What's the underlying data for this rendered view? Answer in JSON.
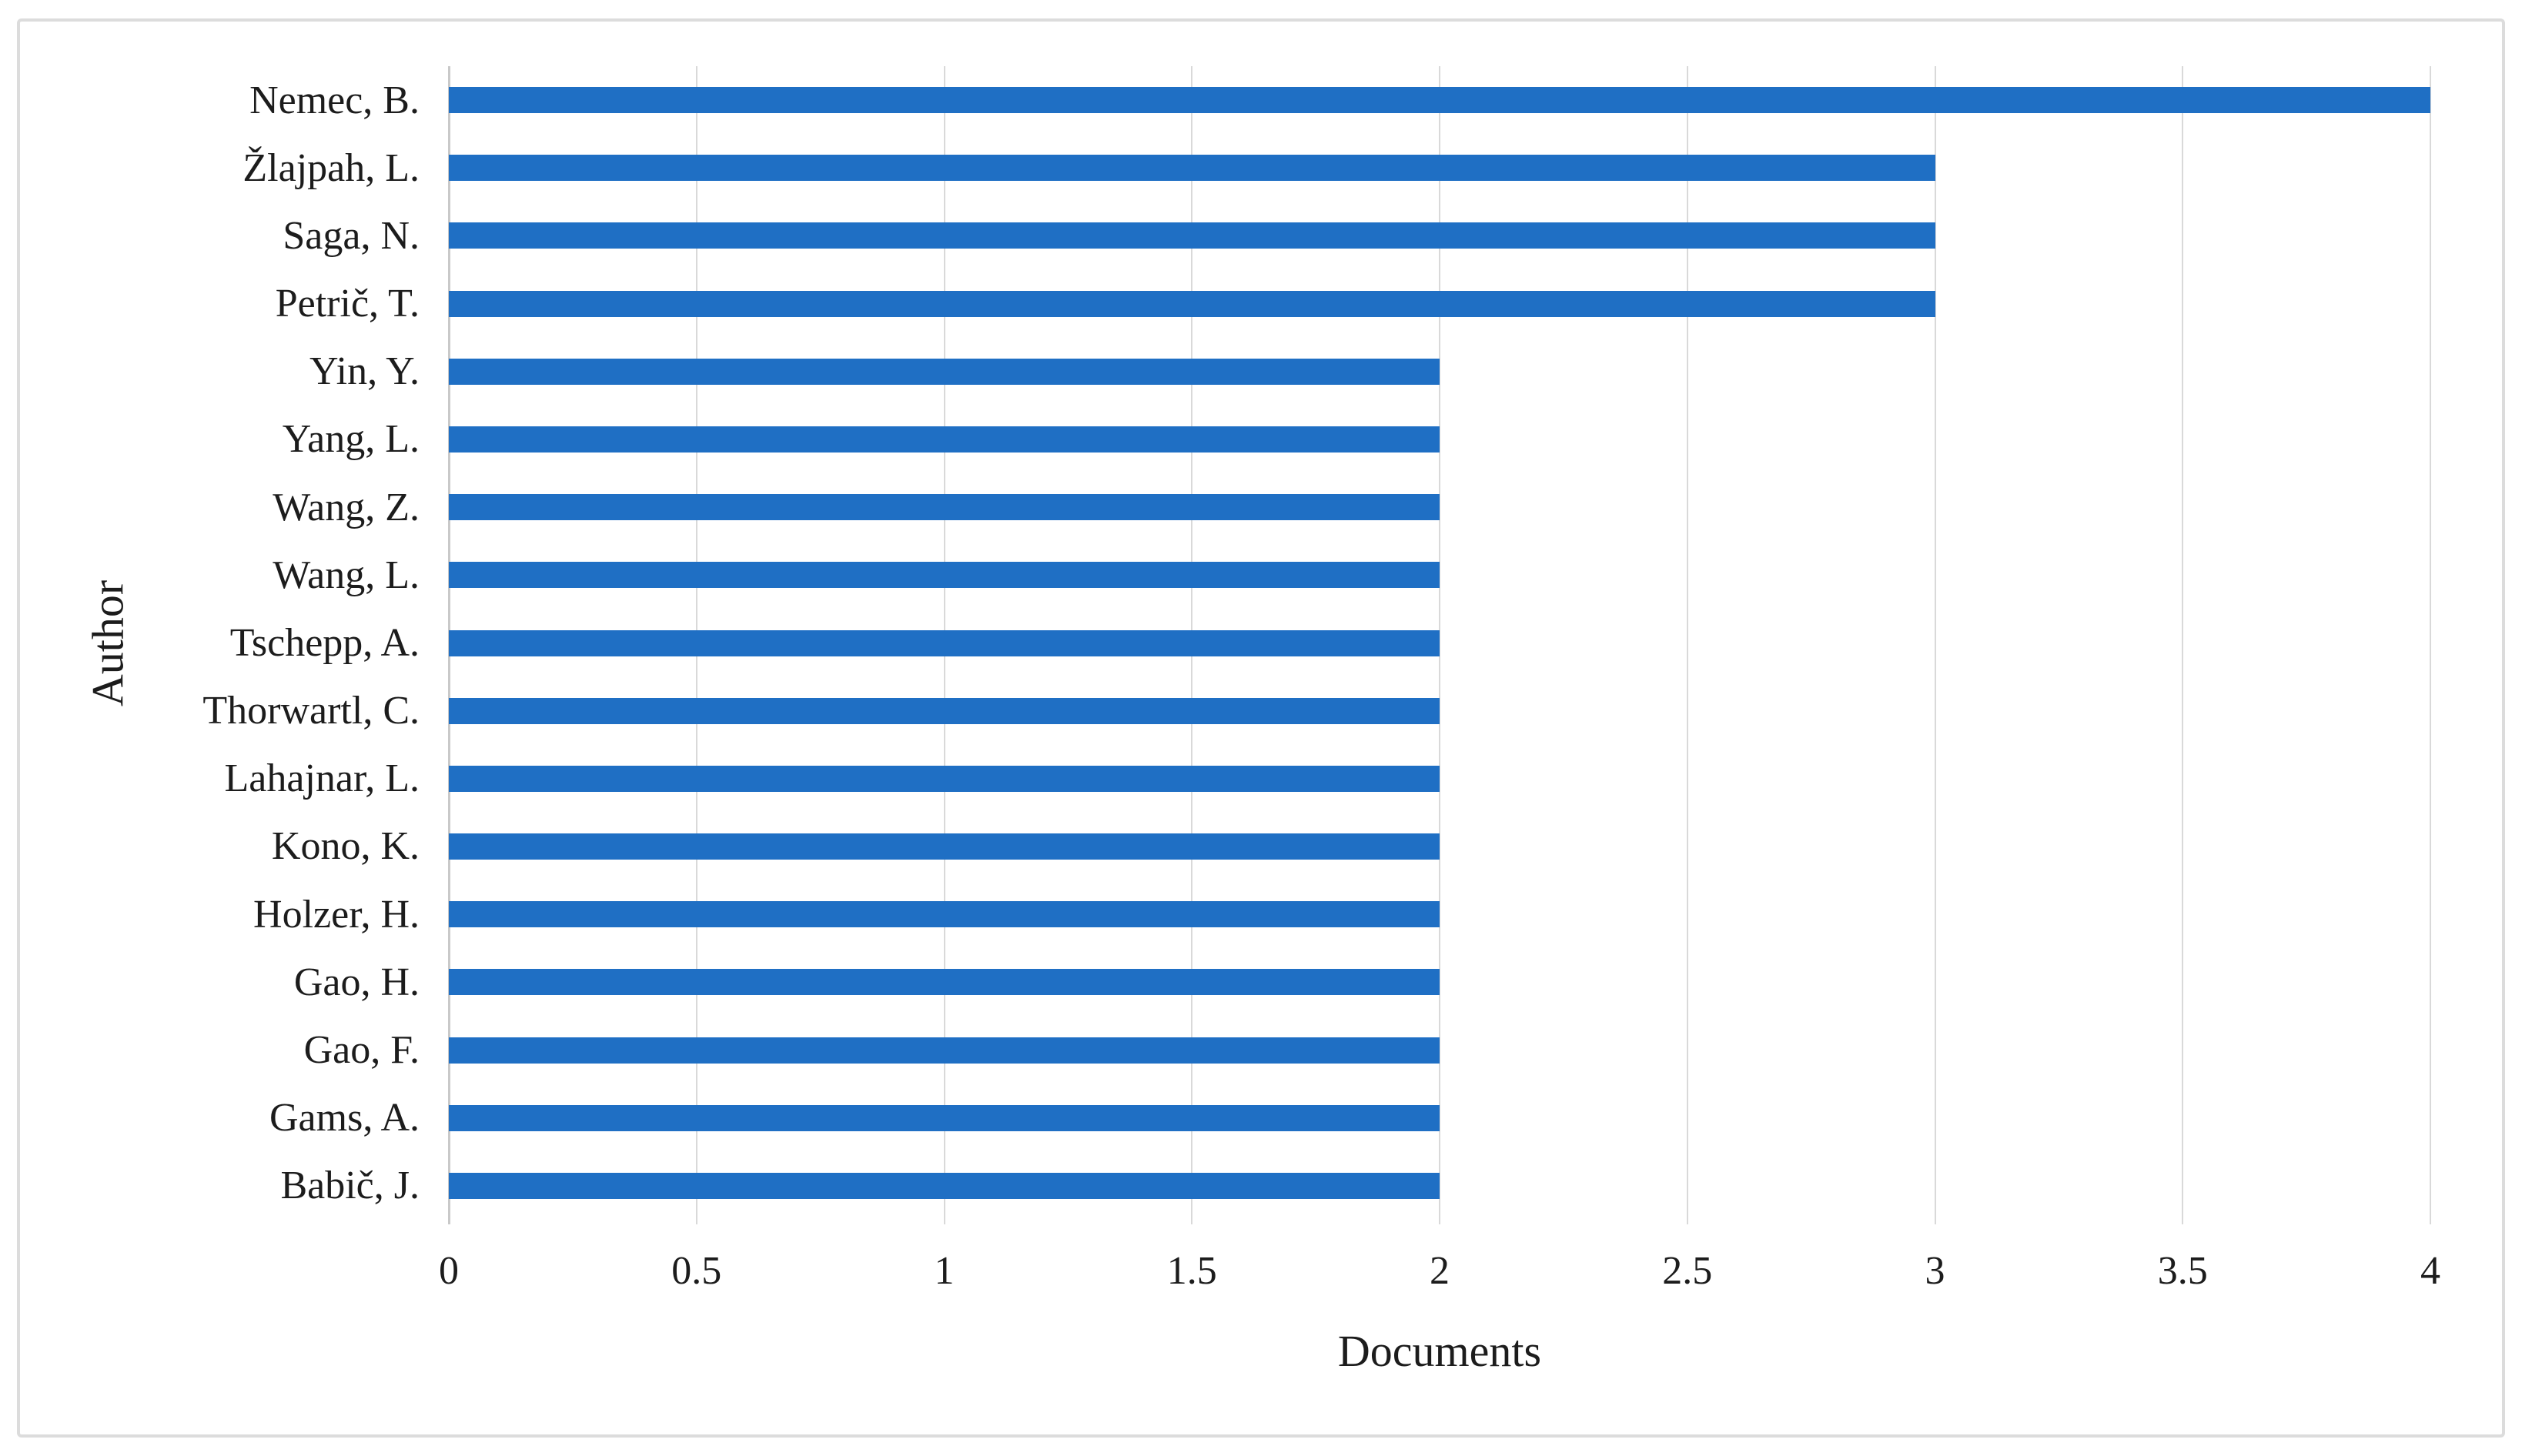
{
  "figure": {
    "background": "#FFFFFF",
    "border_color": "#DCDCDC"
  },
  "chart_data": {
    "type": "bar",
    "orientation": "horizontal",
    "title": "",
    "xlabel": "Documents",
    "ylabel": "Author",
    "xlim": [
      0,
      4
    ],
    "xtick_labels": [
      "0",
      "0.5",
      "1",
      "1.5",
      "2",
      "2.5",
      "3",
      "3.5",
      "4"
    ],
    "categories": [
      "Nemec, B.",
      "Žlajpah, L.",
      "Saga, N.",
      "Petrič, T.",
      "Yin, Y.",
      "Yang, L.",
      "Wang, Z.",
      "Wang, L.",
      "Tschepp, A.",
      "Thorwartl, C.",
      "Lahajnar, L.",
      "Kono, K.",
      "Holzer, H.",
      "Gao, H.",
      "Gao, F.",
      "Gams, A.",
      "Babič, J."
    ],
    "values": [
      4,
      3,
      3,
      3,
      2,
      2,
      2,
      2,
      2,
      2,
      2,
      2,
      2,
      2,
      2,
      2,
      2
    ],
    "bar_color": "#1F6FC4",
    "gridline_color": "#D9D9D9",
    "axis_color": "#C9C9C9",
    "text_color": "#1C1C1C",
    "grid": true,
    "legend": false
  }
}
